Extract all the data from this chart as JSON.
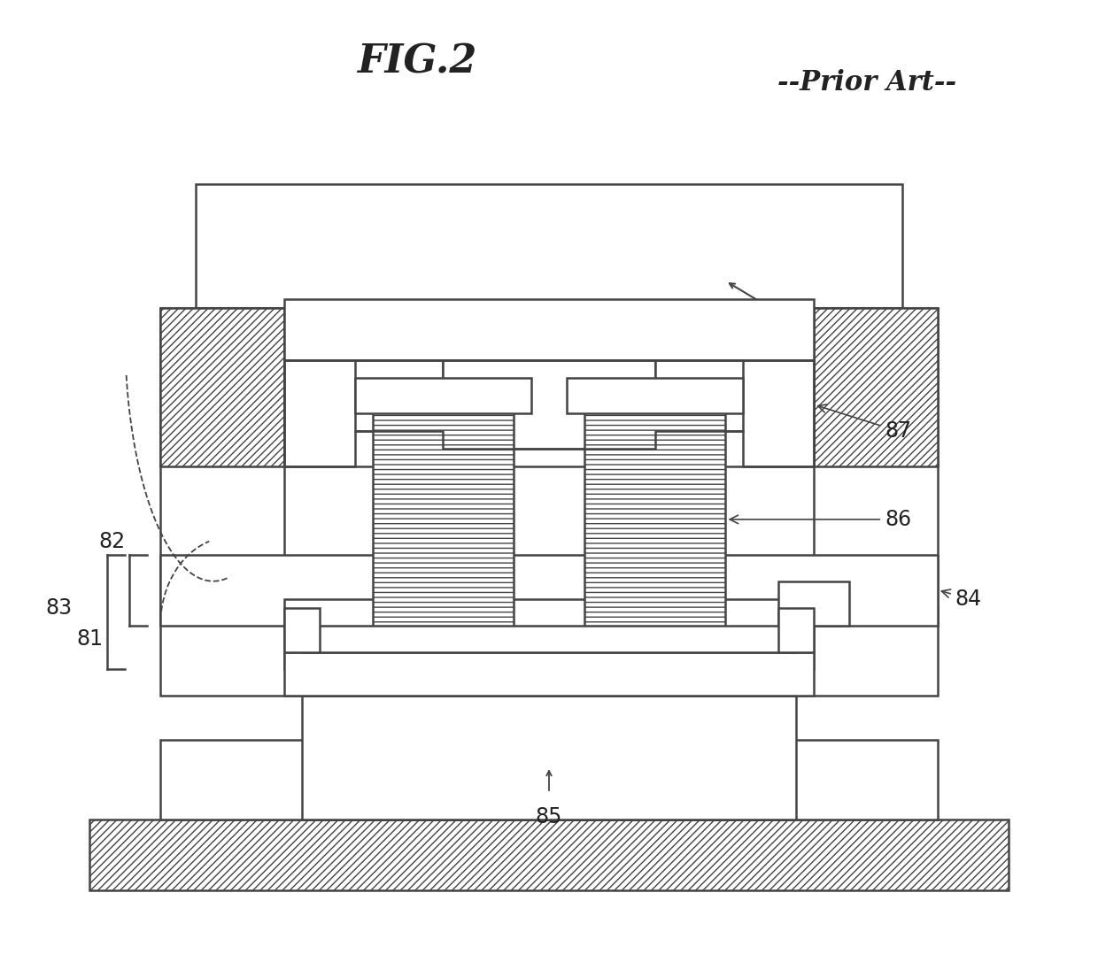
{
  "title": "FIG.2",
  "subtitle": "--Prior Art--",
  "bg_color": "#ffffff",
  "line_color": "#444444",
  "figsize": [
    12.4,
    10.87
  ],
  "dpi": 100
}
